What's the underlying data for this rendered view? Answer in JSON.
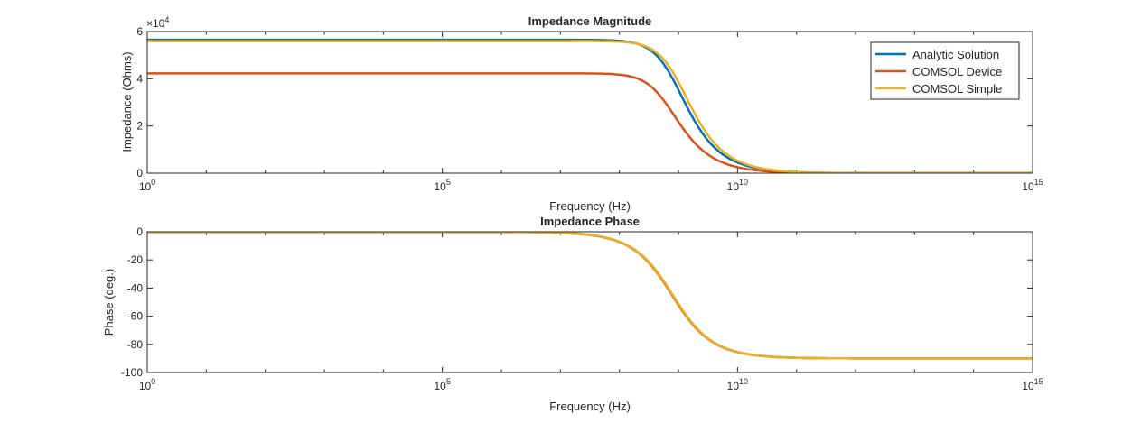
{
  "chart_data": [
    {
      "type": "line",
      "title": "Impedance Magnitude",
      "xlabel": "Frequency (Hz)",
      "ylabel": "Impedance (Ohms)",
      "xscale": "log",
      "xlim": [
        1,
        1000000000000000.0
      ],
      "ylim": [
        0,
        60000
      ],
      "y_multiplier_label": "×10",
      "y_multiplier_exp": "4",
      "xticks": [
        {
          "base": "10",
          "exp": "0"
        },
        {
          "base": "10",
          "exp": "5"
        },
        {
          "base": "10",
          "exp": "10"
        },
        {
          "base": "10",
          "exp": "15"
        }
      ],
      "yticks": [
        "0",
        "2",
        "4",
        "6"
      ],
      "grid": false,
      "legend_position": "top-right",
      "series": [
        {
          "name": "Analytic Solution",
          "color": "#0072BD",
          "R": 56500,
          "fc": 800000000
        },
        {
          "name": "COMSOL Device",
          "color": "#D95319",
          "R": 42300,
          "fc": 600000000
        },
        {
          "name": "COMSOL Simple",
          "color": "#EDB120",
          "R": 56000,
          "fc": 950000000
        }
      ]
    },
    {
      "type": "line",
      "title": "Impedance Phase",
      "xlabel": "Frequency (Hz)",
      "ylabel": "Phase (deg.)",
      "xscale": "log",
      "xlim": [
        1,
        1000000000000000.0
      ],
      "ylim": [
        -100,
        0
      ],
      "xticks": [
        {
          "base": "10",
          "exp": "0"
        },
        {
          "base": "10",
          "exp": "5"
        },
        {
          "base": "10",
          "exp": "10"
        },
        {
          "base": "10",
          "exp": "15"
        }
      ],
      "yticks": [
        "-100",
        "-80",
        "-60",
        "-40",
        "-20",
        "0"
      ],
      "grid": false,
      "series": [
        {
          "name": "Analytic Solution",
          "color": "#0072BD",
          "fc": 800000000
        },
        {
          "name": "COMSOL Device",
          "color": "#D95319",
          "fc": 780000000
        },
        {
          "name": "COMSOL Simple",
          "color": "#EDB120",
          "fc": 800000000
        }
      ]
    }
  ]
}
